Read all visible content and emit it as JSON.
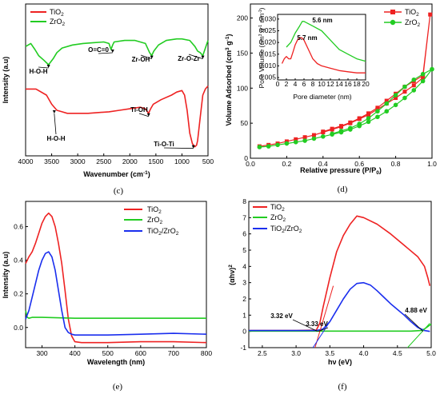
{
  "chart_data": [
    {
      "panel": "(c)",
      "type": "line",
      "xlabel": "Wavenumber (cm-1)",
      "ylabel": "Intensity (a.u)",
      "xlim": [
        4000,
        500
      ],
      "xticks": [
        "4000",
        "3500",
        "3000",
        "2500",
        "2000",
        "1500",
        "1000",
        "500"
      ],
      "legend": [
        "TiO2",
        "ZrO2"
      ],
      "series": [
        {
          "name": "ZrO2",
          "color": "#22cc22",
          "x": [
            4000,
            3900,
            3820,
            3750,
            3650,
            3560,
            3470,
            3400,
            3300,
            3100,
            2900,
            2700,
            2500,
            2400,
            2360,
            2330,
            2300,
            2100,
            1900,
            1700,
            1620,
            1580,
            1540,
            1450,
            1300,
            1100,
            1000,
            850,
            750,
            700,
            650,
            600,
            560,
            520,
            500
          ],
          "y": [
            0.72,
            0.74,
            0.7,
            0.66,
            0.63,
            0.6,
            0.64,
            0.68,
            0.71,
            0.73,
            0.74,
            0.745,
            0.75,
            0.74,
            0.7,
            0.73,
            0.75,
            0.76,
            0.76,
            0.74,
            0.68,
            0.66,
            0.69,
            0.73,
            0.76,
            0.77,
            0.77,
            0.76,
            0.72,
            0.69,
            0.68,
            0.66,
            0.7,
            0.74,
            0.76
          ]
        },
        {
          "name": "TiO2",
          "color": "#ee2222",
          "x": [
            4000,
            3800,
            3600,
            3500,
            3400,
            3300,
            3200,
            3000,
            2800,
            2600,
            2400,
            2200,
            2000,
            1800,
            1700,
            1640,
            1600,
            1550,
            1400,
            1200,
            1100,
            1000,
            950,
            900,
            850,
            800,
            750,
            720,
            700,
            650,
            600,
            550,
            500
          ],
          "y": [
            0.44,
            0.44,
            0.4,
            0.34,
            0.3,
            0.29,
            0.28,
            0.28,
            0.28,
            0.285,
            0.29,
            0.3,
            0.31,
            0.32,
            0.31,
            0.28,
            0.31,
            0.34,
            0.37,
            0.4,
            0.42,
            0.43,
            0.4,
            0.3,
            0.15,
            0.08,
            0.06,
            0.07,
            0.1,
            0.25,
            0.4,
            0.44,
            0.46
          ]
        }
      ],
      "annotations": [
        "H-O-H",
        "O=C=0",
        "Zr-OH",
        "Zr-O-Zr",
        "H-O-H",
        "Ti-OH",
        "Ti-O-Ti"
      ]
    },
    {
      "panel": "(d)",
      "type": "line",
      "xlabel": "Relative pressure (P/P0)",
      "ylabel": "Volume Adsorbed (cm3 g-1)",
      "xlim": [
        0.0,
        1.0
      ],
      "ylim": [
        0,
        220
      ],
      "xticks": [
        "0.0",
        "0.2",
        "0.4",
        "0.6",
        "0.8",
        "1.0"
      ],
      "yticks": [
        "0",
        "50",
        "100",
        "150",
        "200"
      ],
      "legend": [
        "TiO2",
        "ZrO2"
      ],
      "series": [
        {
          "name": "TiO2",
          "color": "#ee2222",
          "marker": "square",
          "x": [
            0.05,
            0.1,
            0.15,
            0.2,
            0.25,
            0.3,
            0.35,
            0.4,
            0.45,
            0.5,
            0.55,
            0.6,
            0.65,
            0.7,
            0.75,
            0.8,
            0.85,
            0.9,
            0.95,
            0.99,
            0.95,
            0.9,
            0.85,
            0.8,
            0.75,
            0.7,
            0.65,
            0.6,
            0.55,
            0.5,
            0.45,
            0.4
          ],
          "y": [
            17,
            19,
            21,
            24,
            27,
            30,
            33,
            37,
            41,
            45,
            50,
            56,
            62,
            70,
            78,
            86,
            95,
            104,
            115,
            205,
            118,
            110,
            102,
            92,
            82,
            72,
            64,
            57,
            51,
            46,
            42,
            38
          ]
        },
        {
          "name": "ZrO2",
          "color": "#22cc22",
          "marker": "circle",
          "x": [
            0.05,
            0.1,
            0.15,
            0.2,
            0.25,
            0.3,
            0.35,
            0.4,
            0.45,
            0.5,
            0.55,
            0.6,
            0.65,
            0.7,
            0.75,
            0.8,
            0.85,
            0.9,
            0.95,
            1.0,
            0.95,
            0.9,
            0.85,
            0.8,
            0.75,
            0.7,
            0.65,
            0.6,
            0.55,
            0.5,
            0.45
          ],
          "y": [
            16,
            17,
            19,
            21,
            23,
            25,
            28,
            31,
            34,
            37,
            41,
            46,
            52,
            59,
            67,
            76,
            86,
            97,
            110,
            127,
            120,
            112,
            102,
            90,
            78,
            67,
            57,
            49,
            43,
            39,
            35
          ]
        }
      ],
      "inset": {
        "xlabel": "Pore diameter (nm)",
        "ylabel": "Pore Volume (cm3 g-1 nm-1)",
        "xlim": [
          0,
          20
        ],
        "ylim": [
          0.004,
          0.032
        ],
        "xticks": [
          "0",
          "2",
          "4",
          "6",
          "8",
          "10",
          "12",
          "14",
          "16",
          "18",
          "20"
        ],
        "yticks": [
          "0.005",
          "0.010",
          "0.015",
          "0.020",
          "0.025",
          "0.030"
        ],
        "series": [
          {
            "name": "TiO2",
            "color": "#ee2222",
            "x": [
              1,
              1.5,
              2,
              2.5,
              3,
              3.5,
              4,
              4.5,
              5,
              5.5,
              6,
              7,
              8,
              9,
              10,
              12,
              14,
              16,
              18,
              20
            ],
            "y": [
              0.011,
              0.013,
              0.014,
              0.013,
              0.013,
              0.016,
              0.019,
              0.021,
              0.022,
              0.022,
              0.021,
              0.017,
              0.013,
              0.011,
              0.01,
              0.009,
              0.008,
              0.0075,
              0.007,
              0.007
            ]
          },
          {
            "name": "ZrO2",
            "color": "#22cc22",
            "x": [
              2,
              3,
              4,
              5,
              5.6,
              6,
              7,
              8,
              9,
              10,
              12,
              14,
              16,
              18,
              20
            ],
            "y": [
              0.018,
              0.02,
              0.024,
              0.027,
              0.029,
              0.029,
              0.028,
              0.027,
              0.026,
              0.025,
              0.021,
              0.017,
              0.015,
              0.013,
              0.012
            ]
          }
        ],
        "annotations": [
          "5.6 nm",
          "5.7 nm"
        ]
      }
    },
    {
      "panel": "(e)",
      "type": "line",
      "xlabel": "Wavelength (nm)",
      "ylabel": "Intensity (a.u)",
      "xlim": [
        250,
        800
      ],
      "ylim": [
        -0.12,
        0.75
      ],
      "xticks": [
        "300",
        "400",
        "500",
        "600",
        "700",
        "800"
      ],
      "yticks": [
        "0.0",
        "0.2",
        "0.4",
        "0.6"
      ],
      "legend": [
        "TiO2",
        "ZrO2",
        "TiO2/ZrO2"
      ],
      "series": [
        {
          "name": "TiO2",
          "color": "#ee2222",
          "x": [
            250,
            260,
            270,
            280,
            290,
            300,
            310,
            320,
            330,
            340,
            350,
            360,
            370,
            380,
            390,
            400,
            420,
            450,
            500,
            600,
            700,
            800
          ],
          "y": [
            0.38,
            0.42,
            0.45,
            0.5,
            0.56,
            0.62,
            0.66,
            0.68,
            0.66,
            0.6,
            0.5,
            0.38,
            0.22,
            0.05,
            -0.05,
            -0.085,
            -0.09,
            -0.09,
            -0.09,
            -0.085,
            -0.085,
            -0.09
          ]
        },
        {
          "name": "ZrO2",
          "color": "#22cc22",
          "x": [
            250,
            255,
            260,
            270,
            300,
            400,
            500,
            600,
            700,
            800
          ],
          "y": [
            0.1,
            0.06,
            0.055,
            0.06,
            0.06,
            0.055,
            0.055,
            0.055,
            0.055,
            0.055
          ]
        },
        {
          "name": "TiO2/ZrO2",
          "color": "#1a2eee",
          "x": [
            250,
            260,
            270,
            280,
            290,
            300,
            310,
            320,
            330,
            340,
            350,
            360,
            370,
            380,
            390,
            400,
            450,
            500,
            600,
            700,
            800
          ],
          "y": [
            0.05,
            0.1,
            0.18,
            0.26,
            0.34,
            0.4,
            0.44,
            0.45,
            0.42,
            0.34,
            0.22,
            0.1,
            0.0,
            -0.03,
            -0.04,
            -0.045,
            -0.045,
            -0.045,
            -0.04,
            -0.035,
            -0.04
          ]
        }
      ]
    },
    {
      "panel": "(f)",
      "type": "line",
      "xlabel": "hv (eV)",
      "ylabel": "(αhv)2",
      "xlim": [
        2.3,
        5.0
      ],
      "ylim": [
        -1,
        8
      ],
      "xticks": [
        "2.5",
        "3.0",
        "3.5",
        "4.0",
        "4.5",
        "5.0"
      ],
      "yticks": [
        "-1",
        "0",
        "1",
        "2",
        "3",
        "4",
        "5",
        "6",
        "7",
        "8"
      ],
      "legend": [
        "TiO2",
        "ZrO2",
        "TiO2/ZrO2"
      ],
      "series": [
        {
          "name": "TiO2",
          "color": "#ee2222",
          "x": [
            2.3,
            3.0,
            3.3,
            3.35,
            3.4,
            3.5,
            3.6,
            3.7,
            3.8,
            3.9,
            4.0,
            4.2,
            4.4,
            4.6,
            4.8,
            4.9,
            4.95,
            4.98
          ],
          "y": [
            0.05,
            0.05,
            0.08,
            0.5,
            1.5,
            3.3,
            4.9,
            5.9,
            6.6,
            7.1,
            7.0,
            6.6,
            6.0,
            5.3,
            4.6,
            4.0,
            3.3,
            2.8
          ]
        },
        {
          "name": "ZrO2",
          "color": "#22cc22",
          "x": [
            2.3,
            3.0,
            4.0,
            4.7,
            4.85,
            4.9,
            4.95,
            5.0
          ],
          "y": [
            0.02,
            0.02,
            0.02,
            0.02,
            0.05,
            0.15,
            0.3,
            0.45
          ]
        },
        {
          "name": "TiO2/ZrO2",
          "color": "#1a2eee",
          "x": [
            2.3,
            3.0,
            3.3,
            3.4,
            3.5,
            3.6,
            3.7,
            3.8,
            3.9,
            4.0,
            4.1,
            4.2,
            4.3,
            4.4,
            4.5,
            4.6,
            4.7,
            4.8,
            4.9,
            4.98
          ],
          "y": [
            0.05,
            0.05,
            0.05,
            0.15,
            0.6,
            1.3,
            2.0,
            2.6,
            2.95,
            3.0,
            2.85,
            2.5,
            2.1,
            1.7,
            1.35,
            1.0,
            0.6,
            0.25,
            0.05,
            0.0
          ]
        }
      ],
      "annotations": [
        "3.32 eV",
        "3.33 eV",
        "4.88 eV"
      ]
    }
  ],
  "panel_labels": [
    "(c)",
    "(d)",
    "(e)",
    "(f)"
  ]
}
